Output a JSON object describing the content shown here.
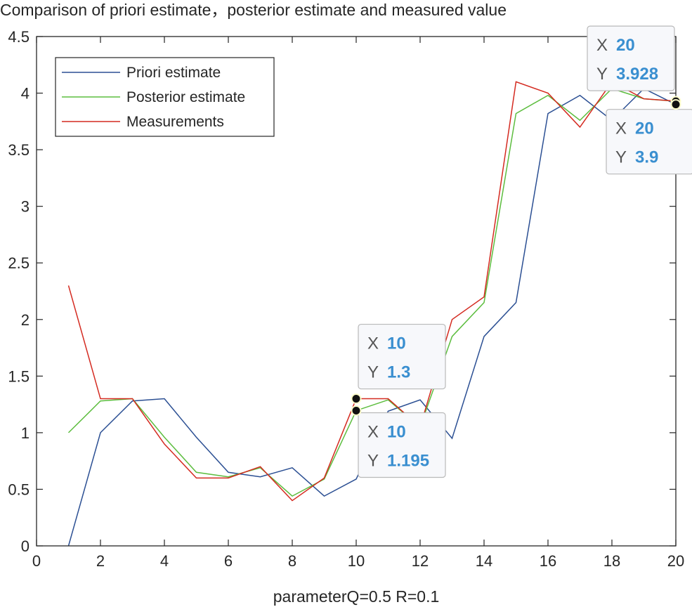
{
  "chart_data": {
    "type": "line",
    "title": "Comparison of priori estimate，posterior estimate and measured value",
    "xlabel": "parameterQ=0.5 R=0.1",
    "ylabel": "",
    "xlim": [
      0,
      20
    ],
    "ylim": [
      0,
      4.5
    ],
    "xticks": [
      "0",
      "2",
      "4",
      "6",
      "8",
      "10",
      "12",
      "14",
      "16",
      "18",
      "20"
    ],
    "yticks": [
      "0",
      "0.5",
      "1",
      "1.5",
      "2",
      "2.5",
      "3",
      "3.5",
      "4",
      "4.5"
    ],
    "grid": false,
    "legend_position": "top-left",
    "x": [
      1,
      2,
      3,
      4,
      5,
      6,
      7,
      8,
      9,
      10,
      11,
      12,
      13,
      14,
      15,
      16,
      17,
      18,
      19,
      20
    ],
    "series": [
      {
        "name": "Priori estimate",
        "color": "#2b4f93",
        "values": [
          0,
          1.0,
          1.28,
          1.3,
          0.96,
          0.65,
          0.61,
          0.69,
          0.44,
          0.59,
          1.19,
          1.29,
          0.95,
          1.85,
          2.15,
          3.82,
          3.98,
          3.76,
          4.04,
          3.9
        ]
      },
      {
        "name": "Posterior estimate",
        "color": "#5cbd3e",
        "values": [
          1.0,
          1.28,
          1.3,
          0.96,
          0.65,
          0.61,
          0.69,
          0.44,
          0.59,
          1.195,
          1.29,
          1.05,
          1.85,
          2.15,
          3.82,
          3.98,
          3.76,
          4.04,
          3.95,
          3.928
        ]
      },
      {
        "name": "Measurements",
        "color": "#d42a20",
        "values": [
          2.3,
          1.3,
          1.3,
          0.9,
          0.6,
          0.6,
          0.7,
          0.4,
          0.6,
          1.3,
          1.3,
          1.05,
          2.0,
          2.2,
          4.1,
          4.0,
          3.7,
          4.1,
          3.95,
          3.93
        ]
      }
    ],
    "datatips": [
      {
        "x_label": "X",
        "x_value": "10",
        "y_label": "Y",
        "y_value": "1.3",
        "x": 10,
        "y": 1.3,
        "placement": "above"
      },
      {
        "x_label": "X",
        "x_value": "10",
        "y_label": "Y",
        "y_value": "1.195",
        "x": 10,
        "y": 1.195,
        "placement": "below"
      },
      {
        "x_label": "X",
        "x_value": "20",
        "y_label": "Y",
        "y_value": "3.928",
        "x": 20,
        "y": 3.928,
        "placement": "above-left"
      },
      {
        "x_label": "X",
        "x_value": "20",
        "y_label": "Y",
        "y_value": "3.9",
        "x": 20,
        "y": 3.9,
        "placement": "below-left"
      }
    ]
  }
}
